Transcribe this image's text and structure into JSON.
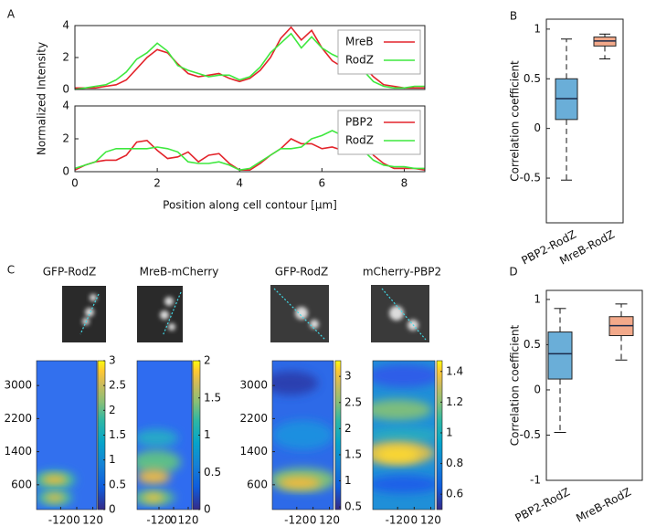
{
  "panel_labels": [
    "A",
    "B",
    "C",
    "D"
  ],
  "chart_data": [
    {
      "type": "line",
      "ylabel": "Normalized Intensity",
      "x": [
        0,
        0.25,
        0.5,
        0.75,
        1,
        1.25,
        1.5,
        1.75,
        2,
        2.25,
        2.5,
        2.75,
        3,
        3.25,
        3.5,
        3.75,
        4,
        4.25,
        4.5,
        4.75,
        5,
        5.25,
        5.5,
        5.75,
        6,
        6.25,
        6.5,
        6.75,
        7,
        7.25,
        7.5,
        7.75,
        8,
        8.25,
        8.5
      ],
      "xlim": [
        0,
        8.5
      ],
      "ylim": [
        0,
        4
      ],
      "yticks": [
        0,
        2,
        4
      ],
      "legend": "upper right",
      "series": [
        {
          "name": "MreB",
          "color": "#e3242b",
          "values": [
            0.1,
            0.1,
            0.1,
            0.2,
            0.3,
            0.6,
            1.3,
            2.0,
            2.5,
            2.3,
            1.6,
            1.0,
            0.8,
            0.9,
            1.0,
            0.7,
            0.5,
            0.7,
            1.2,
            2.0,
            3.2,
            3.9,
            3.1,
            3.7,
            2.6,
            1.8,
            1.4,
            1.3,
            1.5,
            0.8,
            0.3,
            0.2,
            0.1,
            0.1,
            0.1
          ]
        },
        {
          "name": "RodZ",
          "color": "#3ee83e",
          "values": [
            0.0,
            0.1,
            0.2,
            0.3,
            0.6,
            1.1,
            1.9,
            2.3,
            2.9,
            2.4,
            1.5,
            1.2,
            1.0,
            0.8,
            0.9,
            0.9,
            0.6,
            0.8,
            1.4,
            2.3,
            2.9,
            3.5,
            2.6,
            3.3,
            2.6,
            2.2,
            1.9,
            1.0,
            1.2,
            0.5,
            0.2,
            0.1,
            0.1,
            0.2,
            0.2
          ]
        }
      ]
    },
    {
      "type": "line",
      "xlabel": "Position along cell contour [μm]",
      "x": [
        0,
        0.25,
        0.5,
        0.75,
        1,
        1.25,
        1.5,
        1.75,
        2,
        2.25,
        2.5,
        2.75,
        3,
        3.25,
        3.5,
        3.75,
        4,
        4.25,
        4.5,
        4.75,
        5,
        5.25,
        5.5,
        5.75,
        6,
        6.25,
        6.5,
        6.75,
        7,
        7.25,
        7.5,
        7.75,
        8,
        8.25,
        8.5
      ],
      "xlim": [
        0,
        8.5
      ],
      "xticks": [
        0,
        2,
        4,
        6,
        8
      ],
      "ylim": [
        0,
        4
      ],
      "yticks": [
        0,
        2,
        4
      ],
      "legend": "upper right",
      "series": [
        {
          "name": "PBP2",
          "color": "#e3242b",
          "values": [
            0.1,
            0.4,
            0.6,
            0.7,
            0.7,
            1.0,
            1.8,
            1.9,
            1.3,
            0.8,
            0.9,
            1.2,
            0.6,
            1.0,
            1.1,
            0.5,
            0.1,
            0.1,
            0.5,
            1.0,
            1.4,
            2.0,
            1.7,
            1.7,
            1.4,
            1.5,
            1.3,
            1.2,
            1.9,
            1.0,
            0.5,
            0.2,
            0.2,
            0.2,
            0.1
          ]
        },
        {
          "name": "RodZ",
          "color": "#3ee83e",
          "values": [
            0.2,
            0.4,
            0.6,
            1.2,
            1.4,
            1.4,
            1.4,
            1.4,
            1.5,
            1.4,
            1.2,
            0.6,
            0.5,
            0.5,
            0.6,
            0.4,
            0.1,
            0.2,
            0.6,
            1.0,
            1.4,
            1.4,
            1.5,
            2.0,
            2.2,
            2.5,
            2.2,
            1.8,
            1.3,
            0.7,
            0.4,
            0.3,
            0.3,
            0.2,
            0.2
          ]
        }
      ]
    },
    {
      "type": "box",
      "ylabel": "Correlation coefficient",
      "categories": [
        "PBP2-RodZ",
        "MreB-RodZ"
      ],
      "colors": [
        "#6aaed8",
        "#f3a98a"
      ],
      "ylim": [
        -0.95,
        1.1
      ],
      "yticks": [
        -0.5,
        0,
        0.5,
        1
      ],
      "values": [
        {
          "min": -0.52,
          "q1": 0.09,
          "median": 0.3,
          "q3": 0.5,
          "max": 0.9
        },
        {
          "min": 0.7,
          "q1": 0.83,
          "median": 0.88,
          "q3": 0.92,
          "max": 0.95
        }
      ]
    },
    {
      "type": "heatmap",
      "maps": [
        {
          "title": "GFP-RodZ",
          "xlim": [
            -300,
            150
          ],
          "xticks": [
            -120,
            0,
            120
          ],
          "ylim": [
            0,
            3600
          ],
          "yticks": [
            600,
            1400,
            2200,
            3000
          ],
          "clim": [
            0,
            3
          ],
          "colorbar_ticks": [
            0,
            0.5,
            1,
            1.5,
            2,
            2.5,
            3
          ]
        },
        {
          "title": "MreB-mCherry",
          "xlim": [
            -300,
            150
          ],
          "xticks": [
            -120,
            0,
            120
          ],
          "ylim": [
            0,
            3600
          ],
          "clim": [
            0,
            2
          ],
          "colorbar_ticks": [
            0,
            0.5,
            1,
            1.5,
            2
          ]
        },
        {
          "title": "GFP-RodZ",
          "xlim": [
            -300,
            150
          ],
          "xticks": [
            -120,
            0,
            120
          ],
          "ylim": [
            0,
            3600
          ],
          "yticks": [
            600,
            1400,
            2200,
            3000
          ],
          "clim": [
            0.45,
            3.3
          ],
          "colorbar_ticks": [
            0.5,
            1,
            1.5,
            2,
            2.5,
            3
          ]
        },
        {
          "title": "mCherry-PBP2",
          "xlim": [
            -300,
            150
          ],
          "xticks": [
            -120,
            0,
            120
          ],
          "ylim": [
            0,
            3600
          ],
          "clim": [
            0.5,
            1.47
          ],
          "colorbar_ticks": [
            0.6,
            0.8,
            1,
            1.2,
            1.4
          ]
        }
      ]
    },
    {
      "type": "box",
      "ylabel": "Correlation coefficient",
      "categories": [
        "PBP2-RodZ",
        "MreB-RodZ"
      ],
      "colors": [
        "#6aaed8",
        "#f3a98a"
      ],
      "ylim": [
        -1,
        1.1
      ],
      "yticks": [
        -1,
        -0.5,
        0,
        0.5,
        1
      ],
      "values": [
        {
          "min": -0.47,
          "q1": 0.12,
          "median": 0.4,
          "q3": 0.64,
          "max": 0.9
        },
        {
          "min": 0.33,
          "q1": 0.6,
          "median": 0.71,
          "q3": 0.81,
          "max": 0.95
        }
      ]
    }
  ]
}
